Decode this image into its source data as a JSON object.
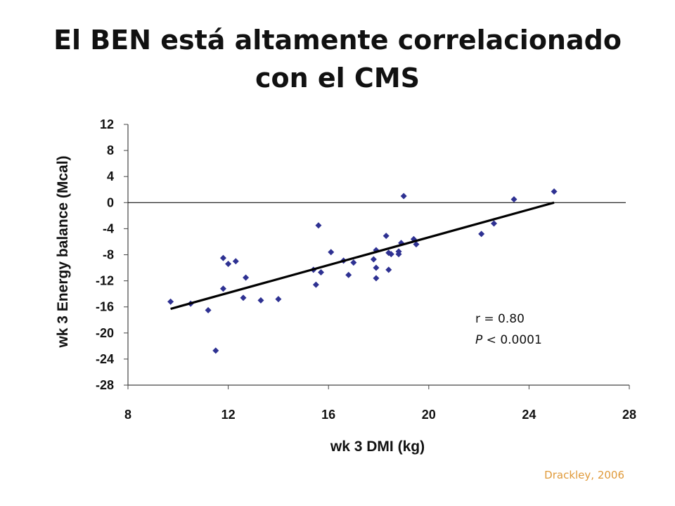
{
  "title_lines": [
    "El BEN está altamente correlacionado",
    "con el CMS"
  ],
  "source": "Drackley, 2006",
  "chart_data": {
    "type": "scatter",
    "title": "El BEN está altamente correlacionado con el CMS",
    "xlabel": "wk 3 DMI (kg)",
    "ylabel": "wk 3 Energy balance (Mcal)",
    "xlim": [
      8,
      28
    ],
    "ylim": [
      -28,
      12
    ],
    "xticks": [
      8,
      12,
      16,
      20,
      24,
      28
    ],
    "yticks": [
      12,
      8,
      4,
      0,
      -4,
      -8,
      -12,
      -16,
      -20,
      -24,
      -28
    ],
    "grid": false,
    "reference_line_y": 0,
    "marker_color": "#2e3192",
    "trendline": {
      "x": [
        9.7,
        25.0
      ],
      "y": [
        -16.3,
        0.0
      ]
    },
    "points": [
      [
        9.7,
        -15.2
      ],
      [
        10.5,
        -15.5
      ],
      [
        11.2,
        -16.5
      ],
      [
        11.5,
        -22.7
      ],
      [
        11.8,
        -8.5
      ],
      [
        11.8,
        -13.2
      ],
      [
        12.0,
        -9.4
      ],
      [
        12.3,
        -9.0
      ],
      [
        12.6,
        -14.6
      ],
      [
        12.7,
        -11.5
      ],
      [
        13.3,
        -15.0
      ],
      [
        14.0,
        -14.8
      ],
      [
        15.4,
        -10.3
      ],
      [
        15.5,
        -12.6
      ],
      [
        15.6,
        -3.5
      ],
      [
        15.7,
        -10.7
      ],
      [
        16.1,
        -7.6
      ],
      [
        16.6,
        -8.9
      ],
      [
        16.8,
        -11.1
      ],
      [
        17.0,
        -9.2
      ],
      [
        17.8,
        -8.7
      ],
      [
        17.9,
        -7.3
      ],
      [
        17.9,
        -10.0
      ],
      [
        17.9,
        -11.6
      ],
      [
        18.3,
        -5.1
      ],
      [
        18.4,
        -10.3
      ],
      [
        18.4,
        -7.7
      ],
      [
        18.5,
        -7.9
      ],
      [
        18.8,
        -7.5
      ],
      [
        18.8,
        -7.9
      ],
      [
        18.9,
        -6.2
      ],
      [
        19.0,
        1.0
      ],
      [
        19.4,
        -5.6
      ],
      [
        19.5,
        -6.4
      ],
      [
        22.1,
        -4.8
      ],
      [
        22.6,
        -3.2
      ],
      [
        23.4,
        0.5
      ],
      [
        25.0,
        1.7
      ]
    ],
    "annotations": [
      {
        "prefix": "r",
        "text": " =  0.80"
      },
      {
        "prefix": "P",
        "text": " < 0.0001"
      }
    ]
  }
}
